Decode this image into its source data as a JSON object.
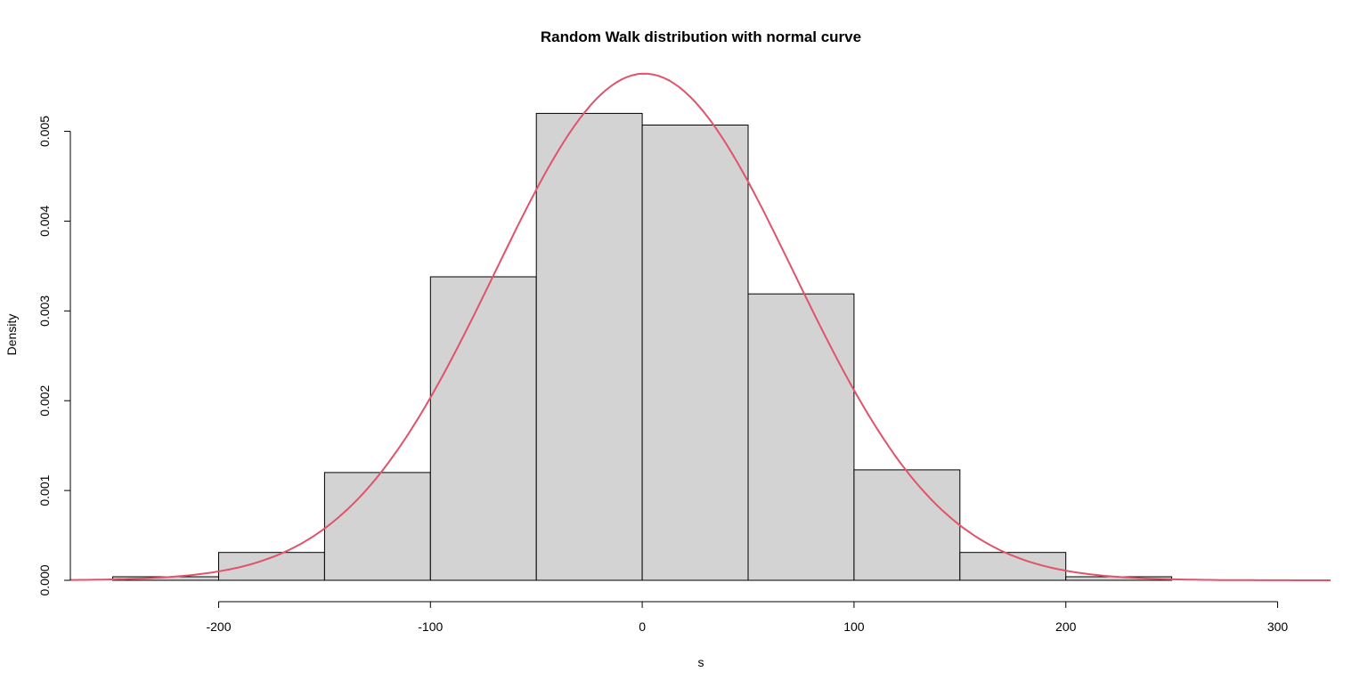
{
  "chart_data": {
    "type": "bar",
    "title": "Random Walk distribution with normal curve",
    "xlabel": "s",
    "ylabel": "Density",
    "xlim": [
      -270,
      325
    ],
    "ylim": [
      0,
      0.0056
    ],
    "x_ticks": [
      -200,
      -100,
      0,
      100,
      200,
      300
    ],
    "x_tick_labels": [
      "-200",
      "-100",
      "0",
      "100",
      "200",
      "300"
    ],
    "y_ticks": [
      0,
      0.001,
      0.002,
      0.003,
      0.004,
      0.005
    ],
    "y_tick_labels": [
      "0.000",
      "0.001",
      "0.002",
      "0.003",
      "0.004",
      "0.005"
    ],
    "bins": [
      {
        "start": -250,
        "end": -200,
        "density": 4e-05
      },
      {
        "start": -200,
        "end": -150,
        "density": 0.00031
      },
      {
        "start": -150,
        "end": -100,
        "density": 0.0012
      },
      {
        "start": -100,
        "end": -50,
        "density": 0.00338
      },
      {
        "start": -50,
        "end": 0,
        "density": 0.0052
      },
      {
        "start": 0,
        "end": 50,
        "density": 0.00507
      },
      {
        "start": 50,
        "end": 100,
        "density": 0.00319
      },
      {
        "start": 100,
        "end": 150,
        "density": 0.00123
      },
      {
        "start": 150,
        "end": 200,
        "density": 0.00031
      },
      {
        "start": 200,
        "end": 250,
        "density": 4e-05
      }
    ],
    "normal_curve": {
      "mean": 1,
      "sd": 70.7,
      "x_range": [
        -270,
        325
      ]
    },
    "bar_color": "#d3d3d3",
    "curve_color": "#df536b",
    "grid": false,
    "legend": "none"
  }
}
